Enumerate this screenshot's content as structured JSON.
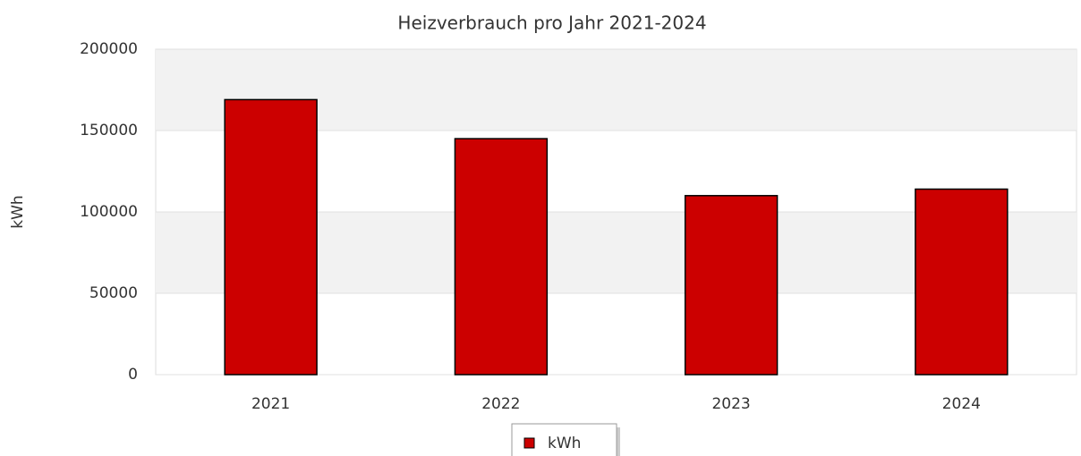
{
  "chart_data": {
    "type": "bar",
    "title": "Heizverbrauch pro Jahr 2021-2024",
    "y_label": "kWh",
    "categories": [
      "2021",
      "2022",
      "2023",
      "2024"
    ],
    "series": [
      {
        "name": "kWh",
        "color": "#cc0000",
        "values": [
          169000,
          145000,
          110000,
          114000
        ]
      }
    ],
    "ylim": [
      0,
      200000
    ],
    "yticks": [
      0,
      50000,
      100000,
      150000,
      200000
    ],
    "grid": true,
    "legend": "bottom"
  }
}
